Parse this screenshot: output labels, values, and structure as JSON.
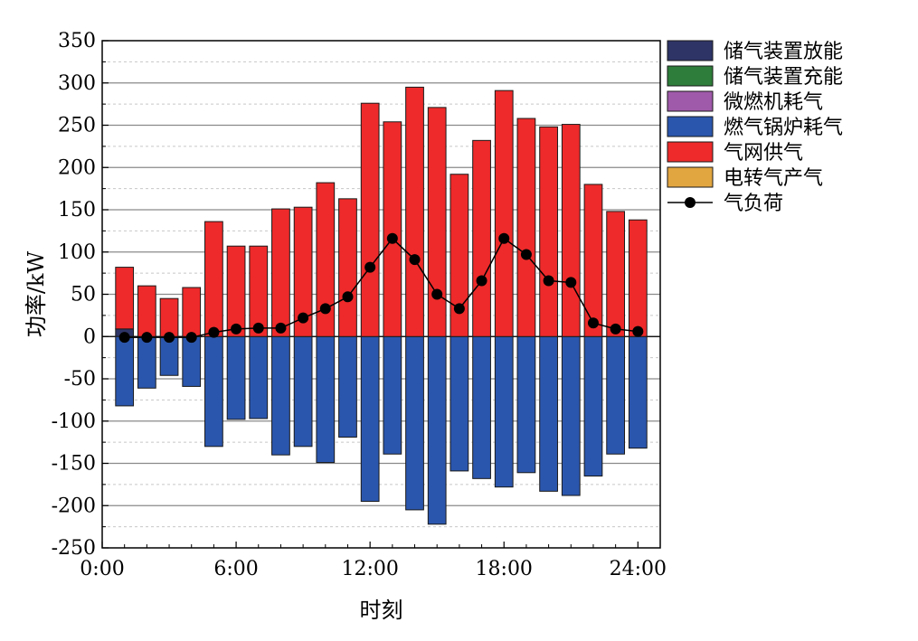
{
  "chart_data": {
    "type": "bar",
    "xlabel": "时刻",
    "ylabel": "功率/kW",
    "ylim": [
      -250,
      350
    ],
    "yticks": [
      350,
      300,
      250,
      200,
      150,
      100,
      50,
      0,
      -50,
      -100,
      -150,
      -200,
      -250
    ],
    "xlim": [
      0,
      25
    ],
    "xticks": [
      {
        "value": 0,
        "label": "0:00"
      },
      {
        "value": 6,
        "label": "6:00"
      },
      {
        "value": 12,
        "label": "12:00"
      },
      {
        "value": 18,
        "label": "18:00"
      },
      {
        "value": 24,
        "label": "24:00"
      }
    ],
    "hours": [
      1,
      2,
      3,
      4,
      5,
      6,
      7,
      8,
      9,
      10,
      11,
      12,
      13,
      14,
      15,
      16,
      17,
      18,
      19,
      20,
      21,
      22,
      23,
      24
    ],
    "grid": "horizontal",
    "legend_position": "right",
    "series": [
      {
        "name": "储气装置放能",
        "color": "#2e3466",
        "values": [
          9,
          0,
          0,
          0,
          0,
          0,
          0,
          0,
          0,
          0,
          0,
          0,
          0,
          0,
          0,
          0,
          0,
          0,
          0,
          0,
          0,
          0,
          0,
          0
        ]
      },
      {
        "name": "储气装置充能",
        "color": "#2e7d3a",
        "values": [
          0,
          0,
          0,
          0,
          0,
          0,
          0,
          0,
          0,
          0,
          0,
          0,
          0,
          0,
          0,
          0,
          0,
          0,
          0,
          0,
          0,
          0,
          0,
          0
        ]
      },
      {
        "name": "微燃机耗气",
        "color": "#a05aaa",
        "values": [
          0,
          0,
          0,
          0,
          0,
          0,
          0,
          0,
          0,
          0,
          0,
          0,
          0,
          0,
          0,
          0,
          0,
          0,
          0,
          0,
          0,
          0,
          0,
          0
        ]
      },
      {
        "name": "燃气锅炉耗气",
        "color": "#2b56ad",
        "values": [
          -82,
          -61,
          -46,
          -59,
          -130,
          -98,
          -97,
          -140,
          -130,
          -149,
          -119,
          -195,
          -139,
          -205,
          -222,
          -159,
          -168,
          -178,
          -161,
          -183,
          -188,
          -165,
          -139,
          -132
        ]
      },
      {
        "name": "气网供气",
        "color": "#ee2a2a",
        "values": [
          73,
          60,
          45,
          58,
          136,
          107,
          107,
          151,
          153,
          182,
          163,
          276,
          254,
          295,
          271,
          192,
          232,
          291,
          258,
          248,
          251,
          180,
          148,
          138
        ]
      },
      {
        "name": "电转气产气",
        "color": "#e2a640",
        "values": [
          0,
          0,
          0,
          0,
          0,
          0,
          0,
          0,
          0,
          0,
          0,
          0,
          0,
          0,
          0,
          0,
          0,
          0,
          0,
          0,
          0,
          0,
          0,
          0
        ]
      },
      {
        "name": "气负荷",
        "color": "#000000",
        "kind": "line",
        "values": [
          -1,
          -1,
          -1,
          -1,
          5,
          9,
          10,
          10,
          22,
          33,
          47,
          82,
          116,
          91,
          50,
          33,
          66,
          116,
          97,
          66,
          64,
          16,
          9,
          6
        ]
      }
    ]
  }
}
